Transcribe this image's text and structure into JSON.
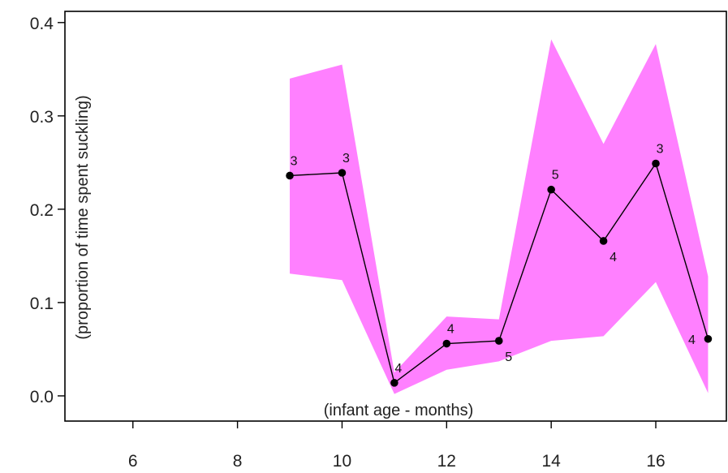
{
  "chart_data": {
    "type": "line",
    "title": "",
    "xlabel": "(infant age - months)",
    "ylabel": "(proportion of time spent suckling)",
    "xlim": [
      4.7,
      17.35
    ],
    "ylim": [
      -0.027,
      0.412
    ],
    "x_ticks": [
      6,
      8,
      10,
      12,
      14,
      16
    ],
    "y_ticks": [
      0.0,
      0.1,
      0.2,
      0.3,
      0.4
    ],
    "x_tick_labels": [
      "6",
      "8",
      "10",
      "12",
      "14",
      "16"
    ],
    "y_tick_labels": [
      "0.0",
      "0.1",
      "0.2",
      "0.3",
      "0.4"
    ],
    "grid": false,
    "band_color": "#ff80ff",
    "line_color": "#000000",
    "series": [
      {
        "x": [
          9,
          10,
          11,
          12,
          13,
          14,
          15,
          16,
          17
        ],
        "y": [
          0.236,
          0.239,
          0.014,
          0.056,
          0.059,
          0.221,
          0.166,
          0.249,
          0.061
        ],
        "upper": [
          0.34,
          0.355,
          0.025,
          0.085,
          0.082,
          0.382,
          0.27,
          0.377,
          0.128
        ],
        "lower": [
          0.131,
          0.124,
          0.002,
          0.028,
          0.037,
          0.059,
          0.064,
          0.122,
          0.003
        ],
        "n_labels": [
          "3",
          "3",
          "4",
          "4",
          "5",
          "5",
          "4",
          "3",
          "4"
        ],
        "n_label_pos": [
          "above",
          "above",
          "above",
          "above",
          "below-right",
          "above",
          "below-right",
          "above",
          "left"
        ]
      }
    ]
  }
}
